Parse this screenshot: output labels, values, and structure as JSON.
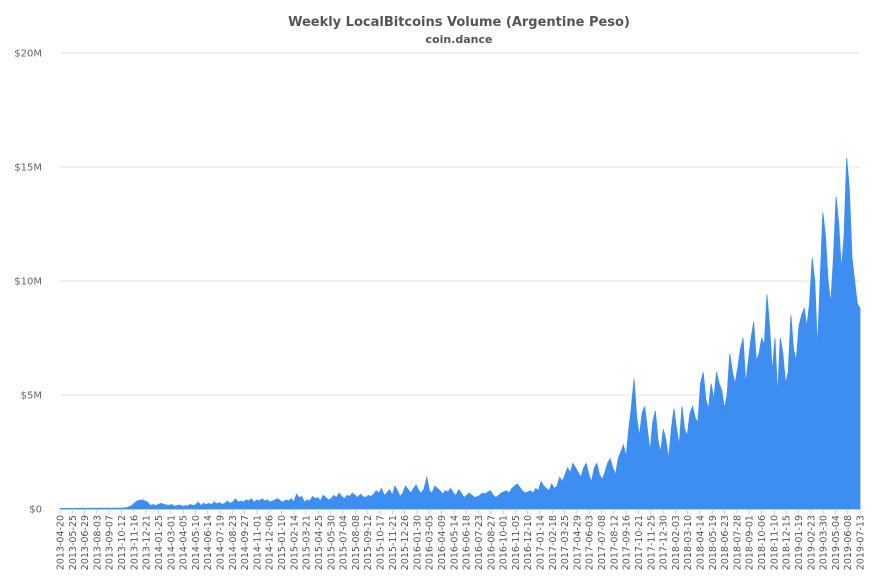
{
  "chart_data": {
    "type": "area",
    "title": "Weekly LocalBitcoins Volume (Argentine Peso)",
    "subtitle": "coin.dance",
    "xlabel": "",
    "ylabel": "",
    "ylim": [
      0,
      20000000
    ],
    "y_ticks": [
      {
        "value": 0,
        "label": "$0"
      },
      {
        "value": 5000000,
        "label": "$5M"
      },
      {
        "value": 10000000,
        "label": "$10M"
      },
      {
        "value": 15000000,
        "label": "$15M"
      },
      {
        "value": 20000000,
        "label": "$20M"
      }
    ],
    "grid": true,
    "legend": "none",
    "color": "#3d8ef0",
    "x_tick_labels": [
      "2013-04-20",
      "2013-05-25",
      "2013-06-29",
      "2013-08-03",
      "2013-09-07",
      "2013-10-12",
      "2013-11-16",
      "2013-12-21",
      "2014-01-25",
      "2014-03-01",
      "2014-04-05",
      "2014-05-10",
      "2014-06-14",
      "2014-07-19",
      "2014-08-23",
      "2014-09-27",
      "2014-11-01",
      "2014-12-06",
      "2015-01-10",
      "2015-02-14",
      "2015-03-21",
      "2015-04-25",
      "2015-05-30",
      "2015-07-04",
      "2015-08-08",
      "2015-09-12",
      "2015-10-17",
      "2015-11-21",
      "2015-12-26",
      "2016-01-30",
      "2016-03-05",
      "2016-04-09",
      "2016-05-14",
      "2016-06-18",
      "2016-07-23",
      "2016-08-27",
      "2016-10-01",
      "2016-11-05",
      "2016-12-10",
      "2017-01-14",
      "2017-02-18",
      "2017-03-25",
      "2017-04-29",
      "2017-06-03",
      "2017-07-08",
      "2017-08-12",
      "2017-09-16",
      "2017-10-21",
      "2017-11-25",
      "2017-12-30",
      "2018-02-03",
      "2018-03-10",
      "2018-04-14",
      "2018-05-19",
      "2018-06-23",
      "2018-07-28",
      "2018-09-01",
      "2018-10-06",
      "2018-11-10",
      "2018-12-15",
      "2019-01-19",
      "2019-02-23",
      "2019-03-30",
      "2019-05-04",
      "2019-06-08",
      "2019-07-13"
    ],
    "series": [
      {
        "values": [
          20000,
          25000,
          20000,
          30000,
          25000,
          20000,
          30000,
          25000,
          35000,
          30000,
          25000,
          30000,
          35000,
          30000,
          40000,
          35000,
          30000,
          40000,
          35000,
          40000,
          35000,
          40000,
          45000,
          40000,
          50000,
          60000,
          100000,
          150000,
          250000,
          350000,
          380000,
          400000,
          350000,
          300000,
          150000,
          200000,
          150000,
          200000,
          250000,
          200000,
          180000,
          160000,
          200000,
          120000,
          150000,
          180000,
          120000,
          150000,
          130000,
          200000,
          150000,
          180000,
          300000,
          150000,
          250000,
          200000,
          250000,
          180000,
          300000,
          220000,
          280000,
          200000,
          250000,
          350000,
          250000,
          300000,
          450000,
          300000,
          350000,
          300000,
          400000,
          350000,
          450000,
          300000,
          400000,
          350000,
          450000,
          350000,
          400000,
          300000,
          350000,
          400000,
          450000,
          350000,
          300000,
          400000,
          350000,
          450000,
          300000,
          650000,
          500000,
          550000,
          300000,
          400000,
          350000,
          550000,
          450000,
          500000,
          350000,
          600000,
          500000,
          400000,
          450000,
          600000,
          500000,
          700000,
          550000,
          450000,
          600000,
          550000,
          700000,
          600000,
          500000,
          650000,
          550000,
          500000,
          600000,
          550000,
          650000,
          800000,
          700000,
          900000,
          600000,
          700000,
          850000,
          600000,
          1000000,
          800000,
          550000,
          700000,
          1000000,
          850000,
          700000,
          900000,
          1050000,
          800000,
          700000,
          900000,
          1400000,
          800000,
          700000,
          1000000,
          900000,
          800000,
          650000,
          800000,
          750000,
          900000,
          700000,
          600000,
          850000,
          700000,
          500000,
          600000,
          700000,
          600000,
          500000,
          550000,
          600000,
          700000,
          650000,
          750000,
          800000,
          600000,
          500000,
          600000,
          700000,
          750000,
          800000,
          700000,
          900000,
          1000000,
          1100000,
          950000,
          800000,
          700000,
          750000,
          800000,
          700000,
          900000,
          800000,
          1200000,
          1000000,
          900000,
          800000,
          1100000,
          900000,
          1000000,
          1400000,
          1200000,
          1500000,
          1800000,
          1600000,
          2000000,
          1800000,
          1600000,
          1400000,
          1800000,
          2000000,
          1500000,
          1200000,
          1800000,
          2000000,
          1500000,
          1300000,
          1600000,
          2000000,
          2200000,
          1800000,
          1500000,
          2200000,
          2500000,
          2800000,
          2300000,
          3500000,
          4500000,
          5700000,
          4000000,
          3200000,
          4200000,
          4500000,
          3500000,
          2500000,
          3800000,
          4300000,
          3000000,
          2500000,
          3500000,
          3000000,
          2200000,
          3500000,
          4400000,
          3500000,
          2800000,
          4500000,
          3500000,
          3200000,
          4200000,
          4500000,
          4000000,
          3800000,
          5500000,
          6000000,
          4800000,
          4400000,
          5500000,
          4800000,
          6000000,
          5500000,
          5200000,
          4400000,
          5000000,
          6800000,
          6000000,
          5500000,
          6200000,
          7000000,
          7500000,
          5500000,
          6500000,
          7500000,
          8200000,
          6500000,
          6800000,
          7500000,
          7200000,
          9400000,
          8000000,
          6000000,
          7500000,
          5000000,
          7500000,
          6800000,
          5500000,
          6000000,
          8500000,
          7000000,
          6500000,
          8000000,
          8500000,
          8800000,
          8000000,
          9000000,
          11000000,
          10000000,
          7000000,
          10000000,
          13000000,
          12000000,
          10000000,
          9000000,
          11000000,
          13700000,
          12500000,
          10500000,
          12000000,
          15400000,
          14000000,
          11000000,
          10000000,
          9000000,
          8800000
        ]
      }
    ]
  }
}
